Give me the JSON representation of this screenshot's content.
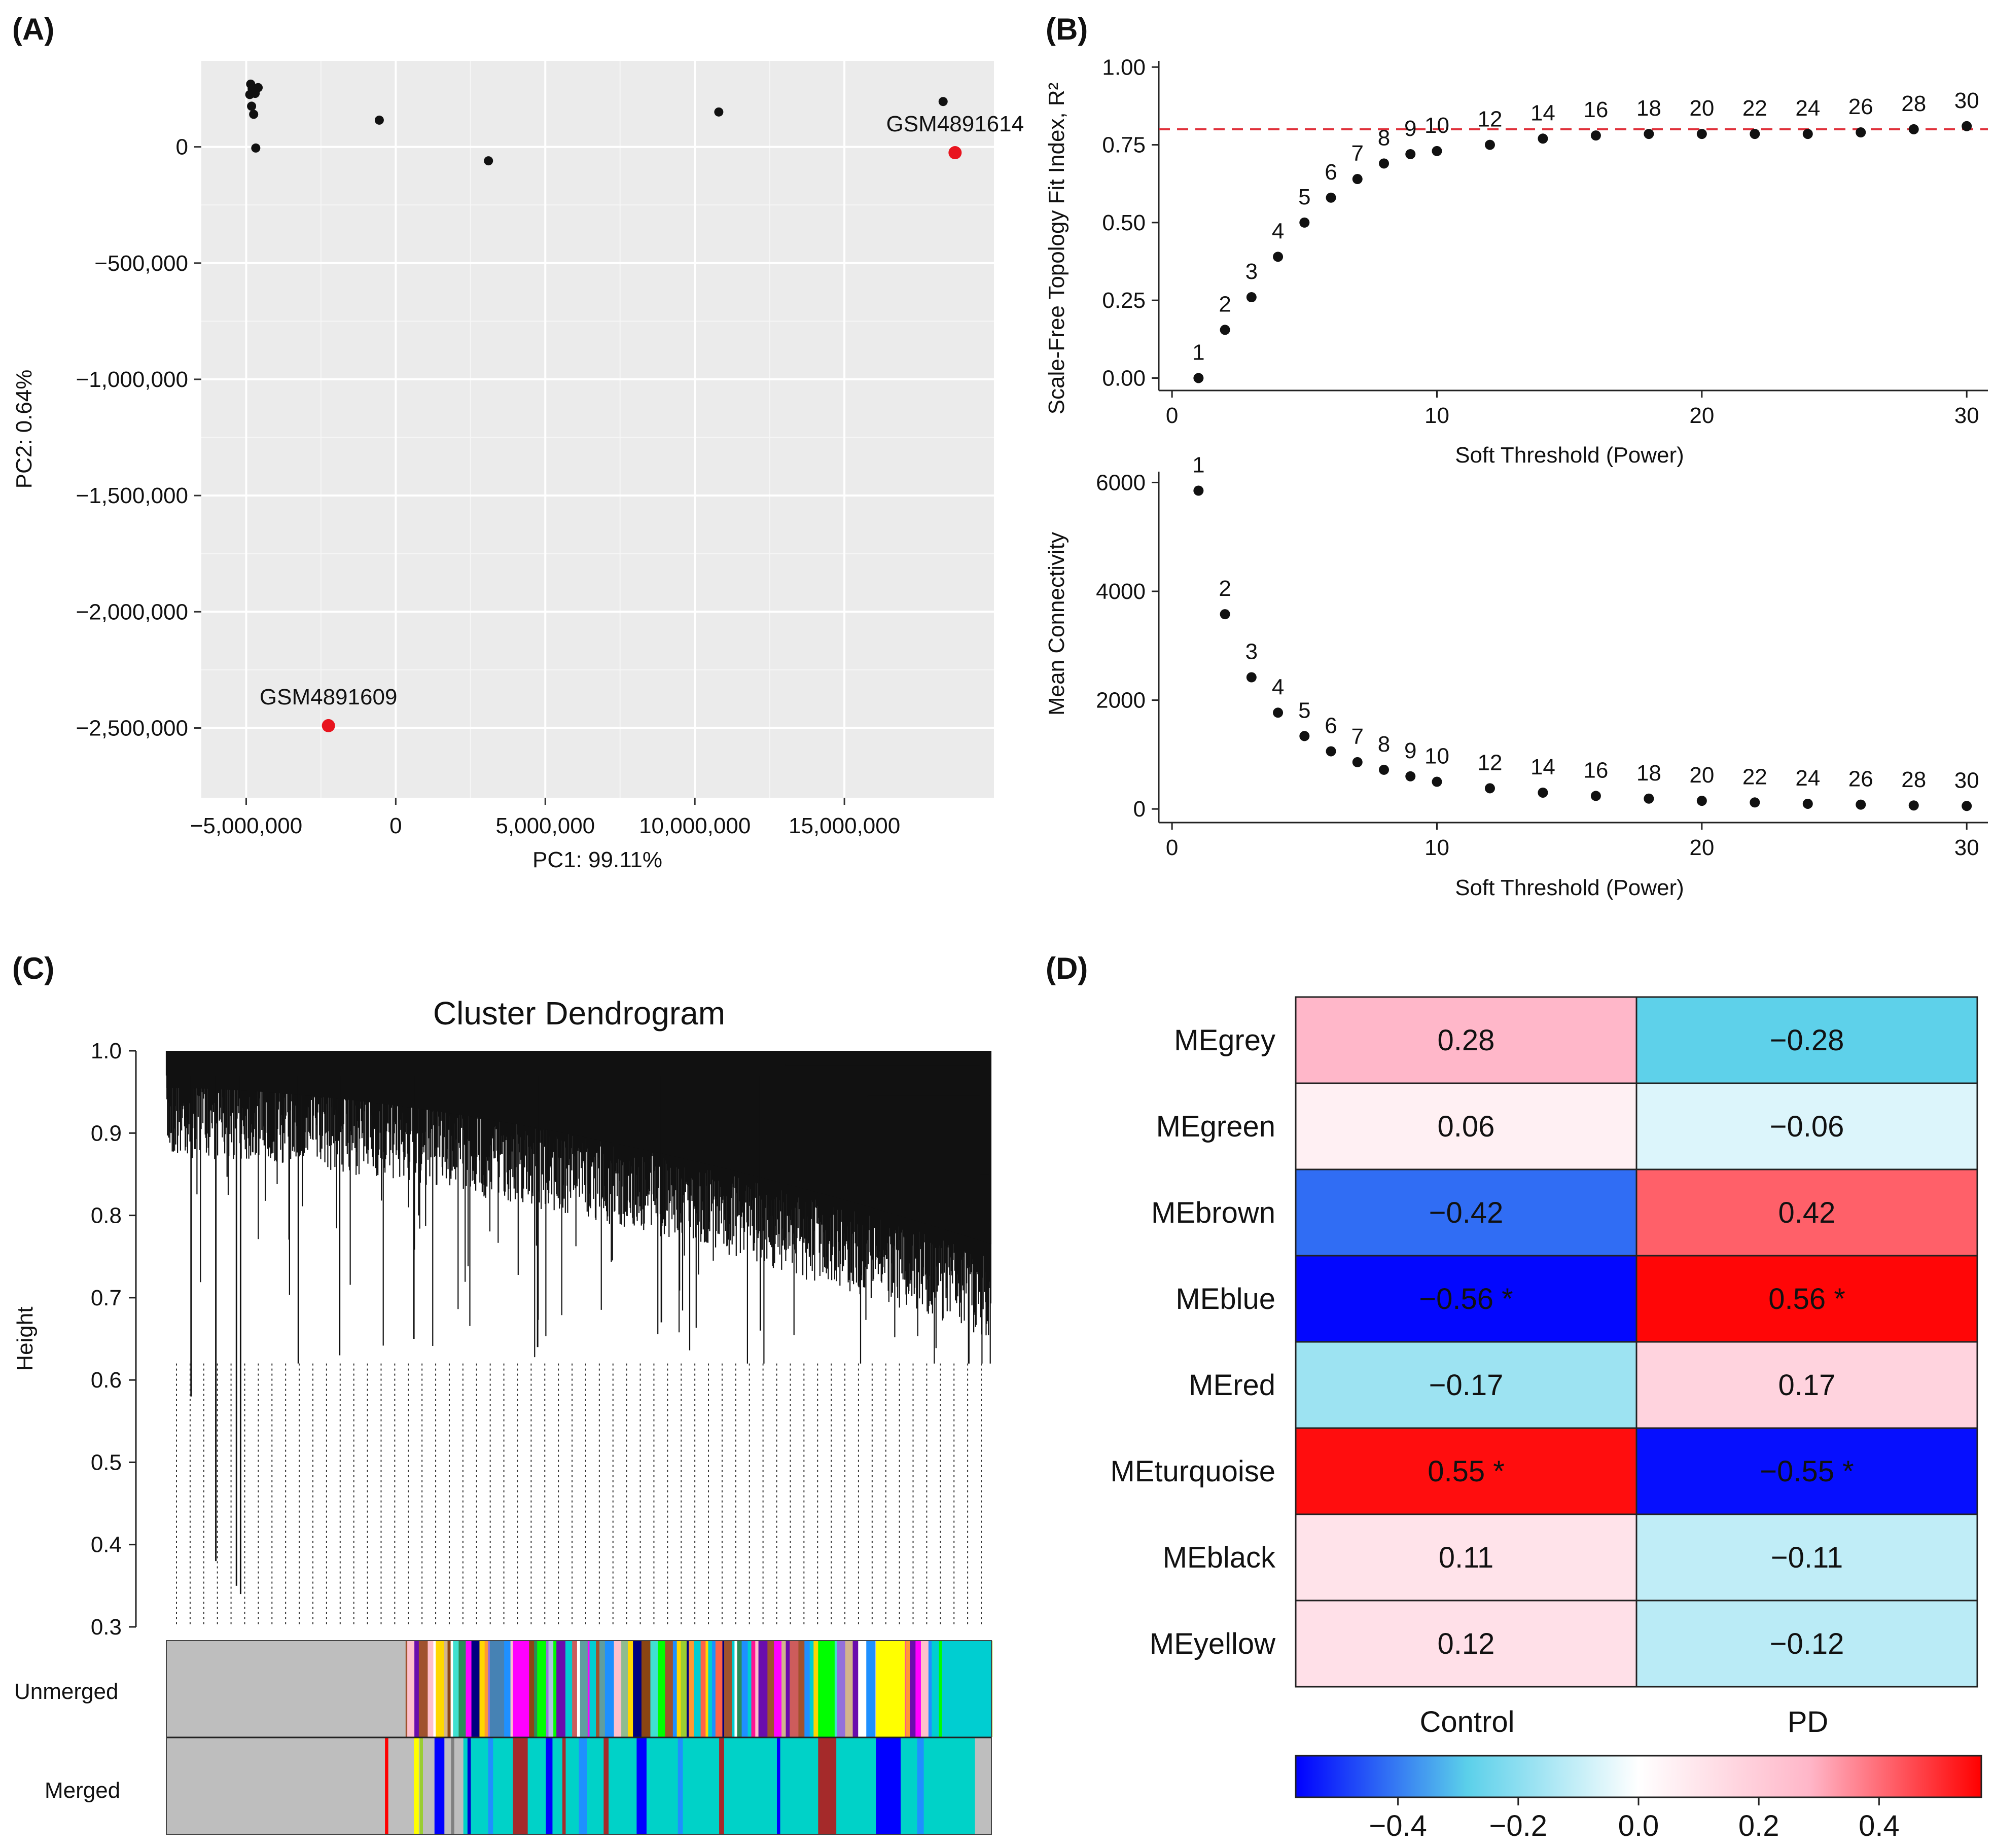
{
  "panels": {
    "A": {
      "label": "(A)"
    },
    "B": {
      "label": "(B)"
    },
    "C": {
      "label": "(C)"
    },
    "D": {
      "label": "(D)"
    }
  },
  "chart_data": [
    {
      "id": "A",
      "type": "scatter",
      "title": "",
      "xlabel": "PC1: 99.11%",
      "ylabel": "PC2: 0.64%",
      "xlim": [
        -6500000,
        20000000
      ],
      "ylim": [
        -2800000,
        370000
      ],
      "xticks": [
        -5000000,
        0,
        5000000,
        10000000,
        15000000
      ],
      "xtick_labels": [
        "−5,000,000",
        "0",
        "5,000,000",
        "10,000,000",
        "15,000,000"
      ],
      "yticks": [
        0,
        -500000,
        -1000000,
        -1500000,
        -2000000,
        -2500000
      ],
      "ytick_labels": [
        "0",
        "−500,000",
        "−1,000,000",
        "−1,500,000",
        "−2,000,000",
        "−2,500,000"
      ],
      "grid": true,
      "points": [
        {
          "x": -4850000,
          "y": 270000,
          "outlier": false
        },
        {
          "x": -4800000,
          "y": 250000,
          "outlier": false
        },
        {
          "x": -4880000,
          "y": 225000,
          "outlier": false
        },
        {
          "x": -4700000,
          "y": 230000,
          "outlier": false
        },
        {
          "x": -4600000,
          "y": 255000,
          "outlier": false
        },
        {
          "x": -4820000,
          "y": 175000,
          "outlier": false
        },
        {
          "x": -4750000,
          "y": 140000,
          "outlier": false
        },
        {
          "x": -4680000,
          "y": -5000,
          "outlier": false
        },
        {
          "x": -550000,
          "y": 115000,
          "outlier": false
        },
        {
          "x": 3100000,
          "y": -60000,
          "outlier": false
        },
        {
          "x": 10800000,
          "y": 150000,
          "outlier": false
        },
        {
          "x": 18300000,
          "y": 195000,
          "outlier": false
        },
        {
          "x": 18700000,
          "y": -25000,
          "outlier": true,
          "label": "GSM4891614"
        },
        {
          "x": -2250000,
          "y": -2490000,
          "outlier": true,
          "label": "GSM4891609"
        }
      ],
      "colors": {
        "normal": "#111111",
        "outlier": "#e8141e",
        "background": "#ebebeb"
      }
    },
    {
      "id": "B-top",
      "type": "scatter",
      "xlabel": "Soft Threshold (Power)",
      "ylabel": "Scale-Free Topology Fit Index, R²",
      "xlim": [
        -0.5,
        30.8
      ],
      "ylim": [
        -0.04,
        1.02
      ],
      "xticks": [
        0,
        10,
        20,
        30
      ],
      "yticks": [
        0,
        0.25,
        0.5,
        0.75,
        1.0
      ],
      "ytick_labels": [
        "0.00",
        "0.25",
        "0.50",
        "0.75",
        "1.00"
      ],
      "threshold_line": 0.8,
      "x": [
        1,
        2,
        3,
        4,
        5,
        6,
        7,
        8,
        9,
        10,
        12,
        14,
        16,
        18,
        20,
        22,
        24,
        26,
        28,
        30
      ],
      "y": [
        0.0,
        0.155,
        0.26,
        0.39,
        0.5,
        0.58,
        0.64,
        0.69,
        0.72,
        0.73,
        0.75,
        0.77,
        0.78,
        0.785,
        0.785,
        0.785,
        0.785,
        0.79,
        0.8,
        0.81
      ],
      "point_labels": [
        "1",
        "2",
        "3",
        "4",
        "5",
        "6",
        "7",
        "8",
        "9",
        "10",
        "12",
        "14",
        "16",
        "18",
        "20",
        "22",
        "24",
        "26",
        "28",
        "30"
      ]
    },
    {
      "id": "B-bottom",
      "type": "scatter",
      "xlabel": "Soft Threshold (Power)",
      "ylabel": "Mean Connectivity",
      "xlim": [
        -0.5,
        30.8
      ],
      "ylim": [
        -250,
        6200
      ],
      "xticks": [
        0,
        10,
        20,
        30
      ],
      "yticks": [
        0,
        2000,
        4000,
        6000
      ],
      "x": [
        1,
        2,
        3,
        4,
        5,
        6,
        7,
        8,
        9,
        10,
        12,
        14,
        16,
        18,
        20,
        22,
        24,
        26,
        28,
        30
      ],
      "y": [
        5850,
        3580,
        2420,
        1770,
        1340,
        1060,
        860,
        720,
        600,
        500,
        380,
        300,
        240,
        190,
        150,
        120,
        95,
        80,
        65,
        55
      ],
      "point_labels": [
        "1",
        "2",
        "3",
        "4",
        "5",
        "6",
        "7",
        "8",
        "9",
        "10",
        "12",
        "14",
        "16",
        "18",
        "20",
        "22",
        "24",
        "26",
        "28",
        "30"
      ]
    },
    {
      "id": "C",
      "type": "dendrogram",
      "title": "Cluster Dendrogram",
      "ylabel": "Height",
      "ylim": [
        0.3,
        1.0
      ],
      "yticks": [
        0.3,
        0.4,
        0.5,
        0.6,
        0.7,
        0.8,
        0.9,
        1.0
      ],
      "ytick_labels": [
        "0.3",
        "0.4",
        "0.5",
        "0.6",
        "0.7",
        "0.8",
        "0.9",
        "1.0"
      ],
      "color_rows": [
        "Unmerged",
        "Merged"
      ]
    },
    {
      "id": "D",
      "type": "heatmap",
      "rows": [
        "MEgrey",
        "MEgreen",
        "MEbrown",
        "MEblue",
        "MEred",
        "MEturquoise",
        "MEblack",
        "MEyellow"
      ],
      "columns": [
        "Control",
        "PD"
      ],
      "values": [
        [
          0.28,
          -0.28
        ],
        [
          0.06,
          -0.06
        ],
        [
          -0.42,
          0.42
        ],
        [
          -0.56,
          0.56
        ],
        [
          -0.17,
          0.17
        ],
        [
          0.55,
          -0.55
        ],
        [
          0.11,
          -0.11
        ],
        [
          0.12,
          -0.12
        ]
      ],
      "cell_text": [
        [
          "0.28",
          "−0.28"
        ],
        [
          "0.06",
          "−0.06"
        ],
        [
          "−0.42",
          "0.42"
        ],
        [
          "−0.56 *",
          "0.56 *"
        ],
        [
          "−0.17",
          "0.17"
        ],
        [
          "0.55 *",
          "−0.55 *"
        ],
        [
          "0.11",
          "−0.11"
        ],
        [
          "0.12",
          "−0.12"
        ]
      ],
      "colorbar": {
        "range": [
          -0.57,
          0.57
        ],
        "ticks": [
          -0.4,
          -0.2,
          0.0,
          0.2,
          0.4
        ],
        "tick_labels": [
          "−0.4",
          "−0.2",
          "0.0",
          "0.2",
          "0.4"
        ],
        "colors": [
          "#0000ff",
          "#5bd0ea",
          "#ffffff",
          "#ffb6c8",
          "#ff0000"
        ]
      }
    }
  ]
}
